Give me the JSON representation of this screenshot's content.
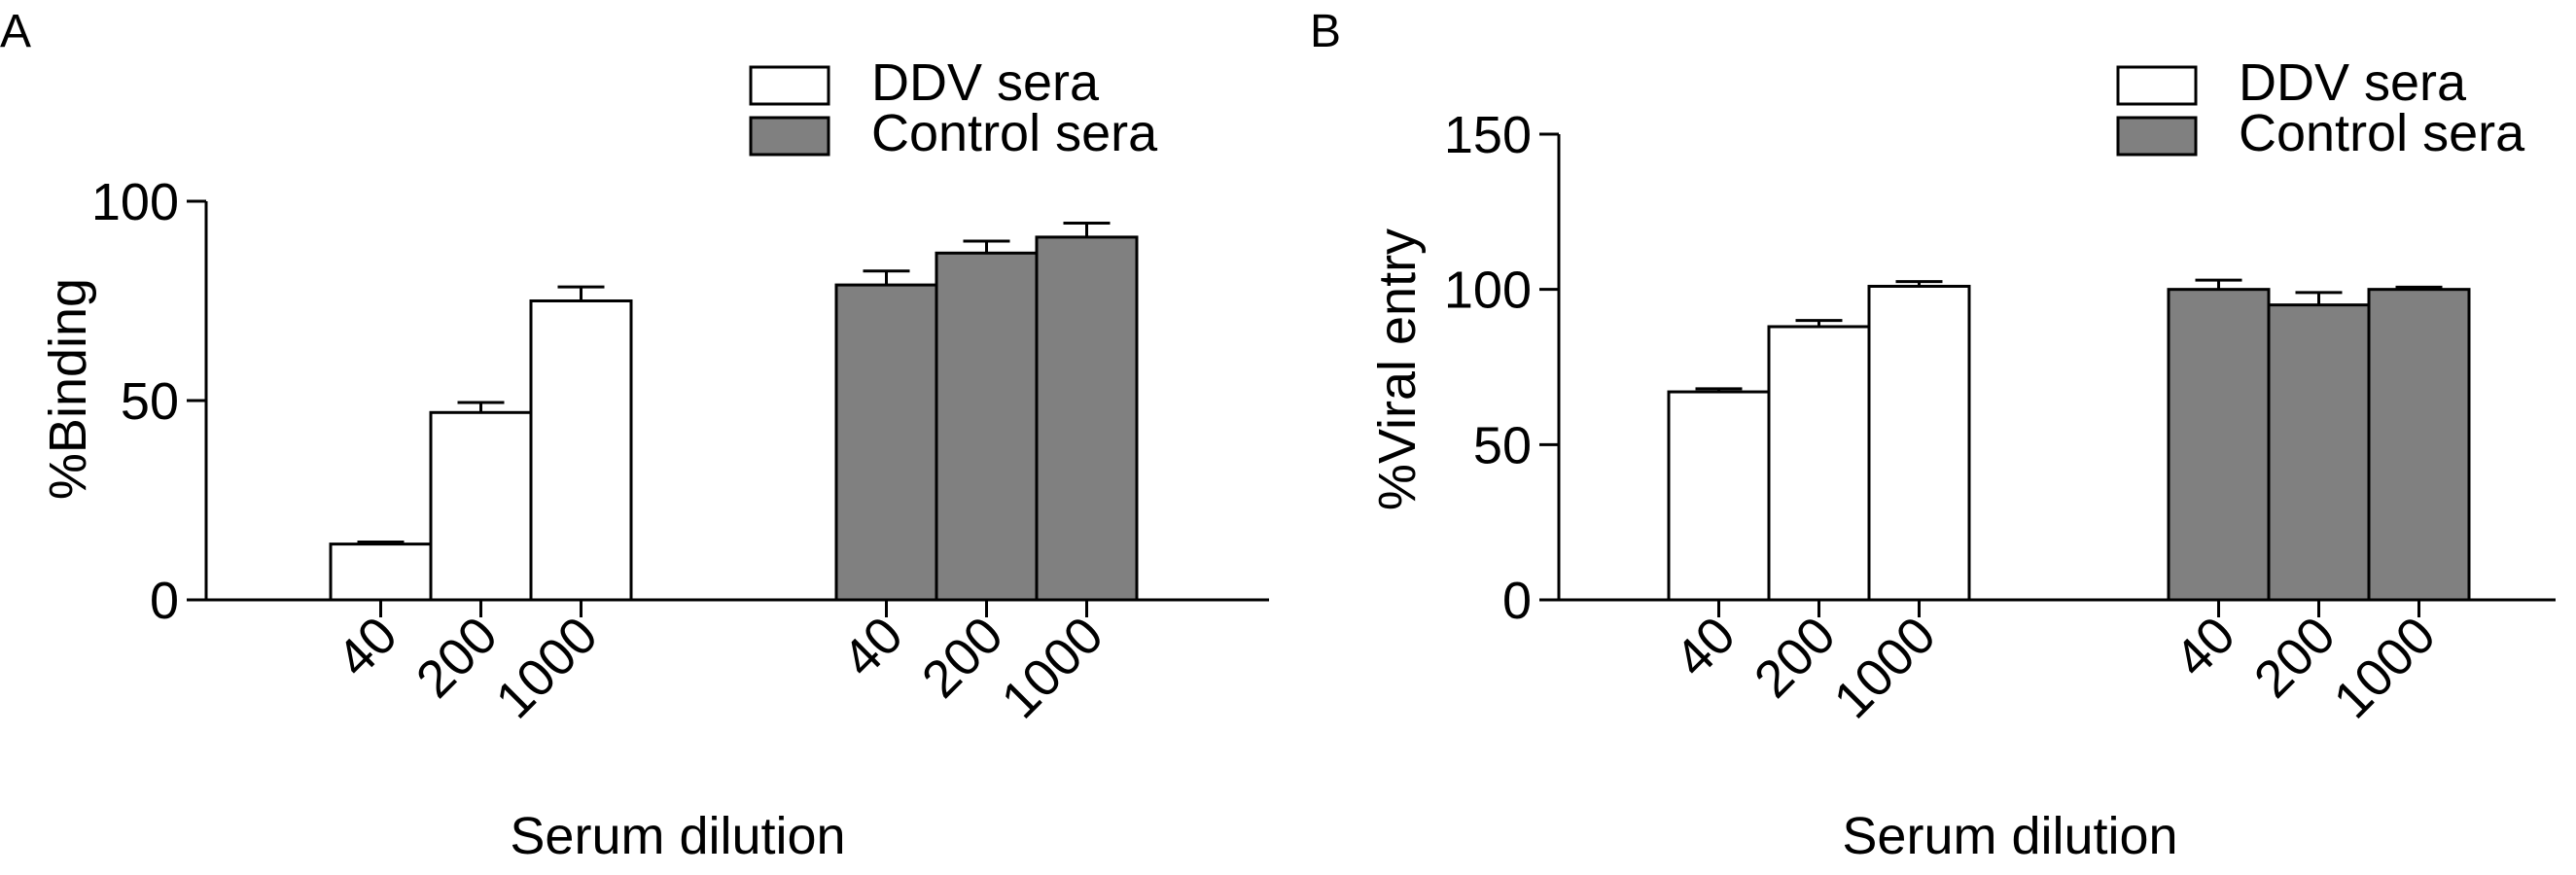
{
  "chart_data": [
    {
      "panel": "A",
      "type": "bar",
      "ylabel": "%Binding",
      "xlabel": "Serum dilution",
      "ylim": [
        0,
        100
      ],
      "yticks": [
        0,
        50,
        100
      ],
      "categories": [
        "40",
        "200",
        "1000"
      ],
      "legend_position": "top-right",
      "series": [
        {
          "name": "DDV sera",
          "color": "#ffffff",
          "values": [
            14,
            47,
            75
          ],
          "errors": [
            0.5,
            2.5,
            3.5
          ]
        },
        {
          "name": "Control sera",
          "color": "#808080",
          "values": [
            79,
            87,
            91
          ],
          "errors": [
            3.5,
            3,
            3.5
          ]
        }
      ]
    },
    {
      "panel": "B",
      "type": "bar",
      "ylabel": "%Viral entry",
      "xlabel": "Serum dilution",
      "ylim": [
        0,
        150
      ],
      "yticks": [
        0,
        50,
        100,
        150
      ],
      "categories": [
        "40",
        "200",
        "1000"
      ],
      "legend_position": "top-right",
      "series": [
        {
          "name": "DDV sera",
          "color": "#ffffff",
          "values": [
            67,
            88,
            101
          ],
          "errors": [
            1,
            2,
            1.5
          ]
        },
        {
          "name": "Control sera",
          "color": "#808080",
          "values": [
            100,
            95,
            100
          ],
          "errors": [
            3,
            4,
            0.7
          ]
        }
      ]
    }
  ]
}
